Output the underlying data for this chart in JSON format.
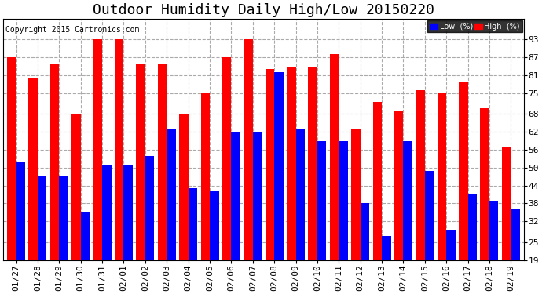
{
  "title": "Outdoor Humidity Daily High/Low 20150220",
  "copyright": "Copyright 2015 Cartronics.com",
  "dates": [
    "01/27",
    "01/28",
    "01/29",
    "01/30",
    "01/31",
    "02/01",
    "02/02",
    "02/03",
    "02/04",
    "02/05",
    "02/06",
    "02/07",
    "02/08",
    "02/09",
    "02/10",
    "02/11",
    "02/12",
    "02/13",
    "02/14",
    "02/15",
    "02/16",
    "02/17",
    "02/18",
    "02/19"
  ],
  "high": [
    87,
    80,
    85,
    68,
    93,
    93,
    85,
    85,
    68,
    75,
    87,
    93,
    83,
    84,
    84,
    88,
    63,
    72,
    69,
    76,
    75,
    79,
    70,
    57
  ],
  "low": [
    52,
    47,
    47,
    35,
    51,
    51,
    54,
    63,
    43,
    42,
    62,
    62,
    82,
    63,
    59,
    59,
    38,
    27,
    59,
    49,
    29,
    41,
    39,
    36
  ],
  "bar_width": 0.42,
  "high_color": "#FF0000",
  "low_color": "#0000FF",
  "bg_color": "#FFFFFF",
  "grid_color": "#AAAAAA",
  "ylim_min": 19,
  "ylim_max": 100,
  "yticks": [
    19,
    25,
    32,
    38,
    44,
    50,
    56,
    62,
    68,
    75,
    81,
    87,
    93
  ],
  "title_fontsize": 13,
  "tick_fontsize": 8,
  "copyright_fontsize": 7,
  "legend_low_label": "Low  (%)",
  "legend_high_label": "High  (%)"
}
